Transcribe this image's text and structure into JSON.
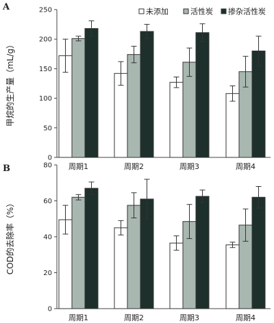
{
  "chart_data": [
    {
      "type": "bar",
      "panel_label": "A",
      "categories": [
        "周期1",
        "周期2",
        "周期3",
        "周期4"
      ],
      "ylabel": "甲烷的生产量（mL/g）",
      "ylim": [
        0,
        250
      ],
      "yticks": [
        0,
        50,
        100,
        150,
        200,
        250
      ],
      "legend_position": "top-right",
      "series": [
        {
          "name": "未添加",
          "color": "#ffffff",
          "values": [
            172,
            142,
            127,
            108
          ],
          "errors": [
            28,
            20,
            9,
            13
          ]
        },
        {
          "name": "活性炭",
          "color": "#a9b7b1",
          "values": [
            201,
            174,
            161,
            145
          ],
          "errors": [
            4,
            14,
            24,
            26
          ]
        },
        {
          "name": "掺杂活性炭",
          "color": "#1d302c",
          "values": [
            218,
            213,
            211,
            180
          ],
          "errors": [
            13,
            12,
            15,
            25
          ]
        }
      ]
    },
    {
      "type": "bar",
      "panel_label": "B",
      "categories": [
        "周期1",
        "周期2",
        "周期3",
        "周期4"
      ],
      "ylabel": "COD的去除率（%）",
      "ylim": [
        0,
        80
      ],
      "yticks": [
        0,
        20,
        40,
        60,
        80
      ],
      "series": [
        {
          "name": "未添加",
          "color": "#ffffff",
          "values": [
            49.5,
            45,
            36.5,
            35.5
          ],
          "errors": [
            8,
            4,
            4,
            1.5
          ]
        },
        {
          "name": "活性炭",
          "color": "#a9b7b1",
          "values": [
            62,
            57.5,
            48.5,
            46.5
          ],
          "errors": [
            1.5,
            7,
            9.5,
            9
          ]
        },
        {
          "name": "掺杂活性炭",
          "color": "#1d302c",
          "values": [
            67,
            61,
            62.5,
            62
          ],
          "errors": [
            3.5,
            11,
            3.5,
            6
          ]
        }
      ]
    }
  ]
}
